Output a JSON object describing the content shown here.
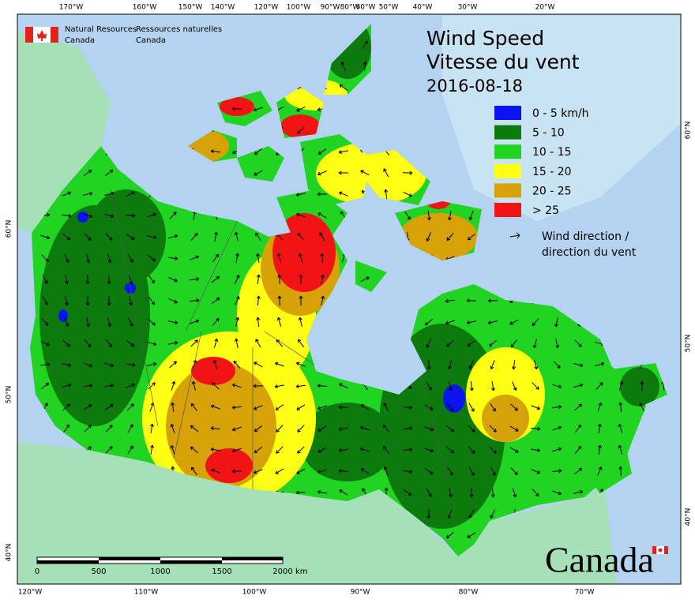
{
  "header": {
    "agency_en": [
      "Natural Resources",
      "Canada"
    ],
    "agency_fr": [
      "Ressources naturelles",
      "Canada"
    ]
  },
  "title": {
    "en": "Wind Speed",
    "fr": "Vitesse du vent",
    "date": "2016-08-18"
  },
  "legend": {
    "items": [
      {
        "label": "0 - 5 km/h",
        "color": "#0a14f0"
      },
      {
        "label": "5 - 10",
        "color": "#0c7a0c"
      },
      {
        "label": "10 - 15",
        "color": "#22d422"
      },
      {
        "label": "15 - 20",
        "color": "#ffff14"
      },
      {
        "label": "20 - 25",
        "color": "#d6a208"
      },
      {
        "label": "> 25",
        "color": "#f21414"
      }
    ],
    "arrow_label": [
      "Wind direction /",
      "direction du vent"
    ]
  },
  "graticule": {
    "top": [
      "170°W",
      "160°W",
      "150°W",
      "140°W",
      "120°W",
      "100°W",
      "90°W",
      "80°W",
      "60°W",
      "50°W",
      "40°W",
      "30°W",
      "20°W"
    ],
    "bottom": [
      "120°W",
      "110°W",
      "100°W",
      "90°W",
      "80°W",
      "70°W"
    ],
    "left": [
      "60°N",
      "50°N",
      "40°N"
    ],
    "right": [
      "60°N",
      "50°N",
      "40°N"
    ]
  },
  "scale_bar": {
    "ticks": [
      "0",
      "500",
      "1000",
      "1500",
      "2000"
    ],
    "unit": "km"
  },
  "wordmark": "Canada"
}
